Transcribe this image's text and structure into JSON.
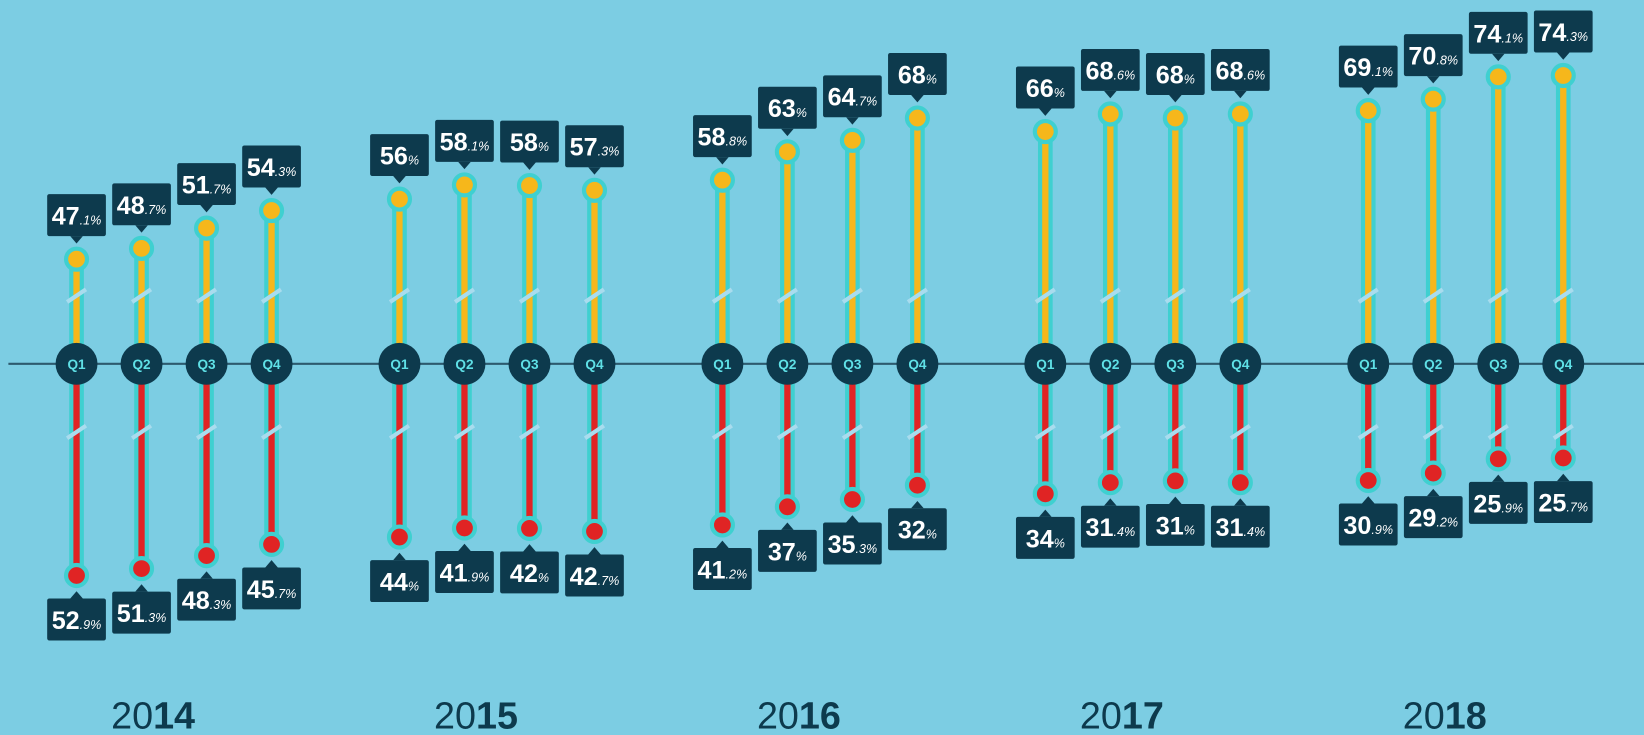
{
  "chart_data": {
    "type": "diverging-lollipop",
    "years": [
      "2014",
      "2015",
      "2016",
      "2017",
      "2018"
    ],
    "quarters": [
      "Q1",
      "Q2",
      "Q3",
      "Q4"
    ],
    "series": [
      {
        "color": "#f6b71b",
        "values": [
          47.1,
          48.7,
          51.7,
          54.3,
          56,
          58.1,
          58,
          57.3,
          58.8,
          63,
          64.7,
          68,
          66,
          68.6,
          68,
          68.6,
          69.1,
          70.8,
          74.1,
          74.3
        ],
        "value_labels": [
          "47.1%",
          "48.7%",
          "51.7%",
          "54.3%",
          "56%",
          "58.1%",
          "58%",
          "57.3%",
          "58.8%",
          "63%",
          "64.7%",
          "68%",
          "66%",
          "68.6%",
          "68%",
          "68.6%",
          "69.1%",
          "70.8%",
          "74.1%",
          "74.3%"
        ]
      },
      {
        "color": "#e02424",
        "values": [
          52.9,
          51.3,
          48.3,
          45.7,
          44,
          41.9,
          42,
          42.7,
          41.2,
          37,
          35.3,
          32,
          34,
          31.4,
          31,
          31.4,
          30.9,
          29.2,
          25.9,
          25.7
        ],
        "value_labels": [
          "52.9%",
          "51.3%",
          "48.3%",
          "45.7%",
          "44%",
          "41.9%",
          "42%",
          "42.7%",
          "41.2%",
          "37%",
          "35.3%",
          "32%",
          "34%",
          "31.4%",
          "31%",
          "31.4%",
          "30.9%",
          "29.2%",
          "25.9%",
          "25.7%"
        ]
      }
    ]
  }
}
